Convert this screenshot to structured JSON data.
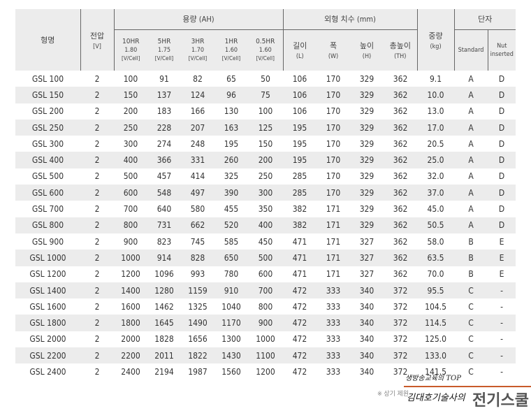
{
  "headers": {
    "model": "형명",
    "voltage": "전압",
    "voltage_unit": "[V]",
    "capacity": "용량 (AH)",
    "rates": [
      {
        "hr": "10HR",
        "v": "1.80",
        "u": "[V/Cell]"
      },
      {
        "hr": "5HR",
        "v": "1.75",
        "u": "[V/Cell]"
      },
      {
        "hr": "3HR",
        "v": "1.70",
        "u": "[V/Cell]"
      },
      {
        "hr": "1HR",
        "v": "1.60",
        "u": "[V/Cell]"
      },
      {
        "hr": "0.5HR",
        "v": "1.60",
        "u": "[V/Cell]"
      }
    ],
    "dims": "외형 치수 (mm)",
    "dim_cols": [
      {
        "n": "길이",
        "u": "(L)"
      },
      {
        "n": "폭",
        "u": "(W)"
      },
      {
        "n": "높이",
        "u": "(H)"
      },
      {
        "n": "총높이",
        "u": "(TH)"
      }
    ],
    "weight": "중량",
    "weight_unit": "(kg)",
    "terminal": "단자",
    "standard": "Standard",
    "nut": "Nut inserted"
  },
  "rows": [
    [
      "GSL 100",
      "2",
      "100",
      "91",
      "82",
      "65",
      "50",
      "106",
      "170",
      "329",
      "362",
      "9.1",
      "A",
      "D"
    ],
    [
      "GSL 150",
      "2",
      "150",
      "137",
      "124",
      "96",
      "75",
      "106",
      "170",
      "329",
      "362",
      "10.0",
      "A",
      "D"
    ],
    [
      "GSL 200",
      "2",
      "200",
      "183",
      "166",
      "130",
      "100",
      "106",
      "170",
      "329",
      "362",
      "13.0",
      "A",
      "D"
    ],
    [
      "GSL 250",
      "2",
      "250",
      "228",
      "207",
      "163",
      "125",
      "195",
      "170",
      "329",
      "362",
      "17.0",
      "A",
      "D"
    ],
    [
      "GSL 300",
      "2",
      "300",
      "274",
      "248",
      "195",
      "150",
      "195",
      "170",
      "329",
      "362",
      "20.5",
      "A",
      "D"
    ],
    [
      "GSL 400",
      "2",
      "400",
      "366",
      "331",
      "260",
      "200",
      "195",
      "170",
      "329",
      "362",
      "25.0",
      "A",
      "D"
    ],
    [
      "GSL 500",
      "2",
      "500",
      "457",
      "414",
      "325",
      "250",
      "285",
      "170",
      "329",
      "362",
      "32.0",
      "A",
      "D"
    ],
    [
      "GSL 600",
      "2",
      "600",
      "548",
      "497",
      "390",
      "300",
      "285",
      "170",
      "329",
      "362",
      "37.0",
      "A",
      "D"
    ],
    [
      "GSL 700",
      "2",
      "700",
      "640",
      "580",
      "455",
      "350",
      "382",
      "171",
      "329",
      "362",
      "45.0",
      "A",
      "D"
    ],
    [
      "GSL 800",
      "2",
      "800",
      "731",
      "662",
      "520",
      "400",
      "382",
      "171",
      "329",
      "362",
      "50.5",
      "A",
      "D"
    ],
    [
      "GSL 900",
      "2",
      "900",
      "823",
      "745",
      "585",
      "450",
      "471",
      "171",
      "327",
      "362",
      "58.0",
      "B",
      "E"
    ],
    [
      "GSL 1000",
      "2",
      "1000",
      "914",
      "828",
      "650",
      "500",
      "471",
      "171",
      "327",
      "362",
      "63.5",
      "B",
      "E"
    ],
    [
      "GSL 1200",
      "2",
      "1200",
      "1096",
      "993",
      "780",
      "600",
      "471",
      "171",
      "327",
      "362",
      "70.0",
      "B",
      "E"
    ],
    [
      "GSL 1400",
      "2",
      "1400",
      "1280",
      "1159",
      "910",
      "700",
      "472",
      "333",
      "340",
      "372",
      "95.5",
      "C",
      "-"
    ],
    [
      "GSL 1600",
      "2",
      "1600",
      "1462",
      "1325",
      "1040",
      "800",
      "472",
      "333",
      "340",
      "372",
      "104.5",
      "C",
      "-"
    ],
    [
      "GSL 1800",
      "2",
      "1800",
      "1645",
      "1490",
      "1170",
      "900",
      "472",
      "333",
      "340",
      "372",
      "114.5",
      "C",
      "-"
    ],
    [
      "GSL 2000",
      "2",
      "2000",
      "1828",
      "1656",
      "1300",
      "1000",
      "472",
      "333",
      "340",
      "372",
      "125.0",
      "C",
      "-"
    ],
    [
      "GSL 2200",
      "2",
      "2200",
      "2011",
      "1822",
      "1430",
      "1100",
      "472",
      "333",
      "340",
      "372",
      "133.0",
      "C",
      "-"
    ],
    [
      "GSL 2400",
      "2",
      "2400",
      "2194",
      "1987",
      "1560",
      "1200",
      "472",
      "333",
      "340",
      "372",
      "141.5",
      "C",
      "-"
    ]
  ],
  "footnote": "※ 상기 제원",
  "watermark": {
    "line1": "생방송교육의 TOP",
    "line2": "김대호기술사의",
    "logo": "전기스쿨"
  }
}
